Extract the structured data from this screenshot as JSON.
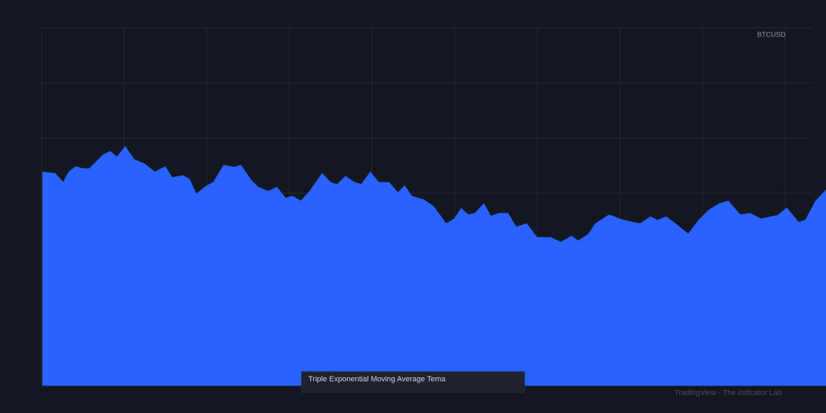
{
  "chart_data": {
    "type": "area",
    "symbol": "BTCUSD",
    "tooltip": "Triple Exponential Moving Average Tema",
    "footer": "TradingView · The Indicator Lab",
    "color": "#2962ff",
    "x": [
      62,
      80,
      92,
      100,
      110,
      120,
      130,
      140,
      150,
      160,
      170,
      182,
      195,
      210,
      225,
      240,
      250,
      265,
      275,
      285,
      300,
      310,
      325,
      340,
      350,
      365,
      375,
      390,
      402,
      415,
      425,
      437,
      450,
      468,
      480,
      490,
      502,
      515,
      525,
      538,
      550,
      565,
      578,
      588,
      598,
      615,
      630,
      648,
      660,
      670,
      680,
      690,
      703,
      713,
      725,
      738,
      750,
      765,
      780,
      790,
      800,
      815,
      830,
      840,
      855,
      865,
      885,
      900,
      915,
      930,
      945,
      955,
      968,
      985,
      1000,
      1015,
      1030,
      1045,
      1058,
      1075,
      1090,
      1105,
      1120,
      1130,
      1143,
      1160,
      1170,
      1185,
      1200
    ],
    "values": [
      310,
      308,
      295,
      310,
      318,
      315,
      315,
      325,
      335,
      340,
      332,
      347,
      328,
      322,
      310,
      318,
      302,
      305,
      300,
      278,
      290,
      295,
      320,
      317,
      320,
      298,
      288,
      282,
      288,
      272,
      275,
      268,
      282,
      308,
      295,
      292,
      304,
      295,
      292,
      310,
      295,
      295,
      280,
      290,
      275,
      270,
      260,
      235,
      242,
      257,
      248,
      250,
      264,
      246,
      250,
      250,
      230,
      235,
      215,
      215,
      215,
      208,
      217,
      210,
      220,
      235,
      248,
      242,
      238,
      235,
      245,
      240,
      245,
      232,
      220,
      240,
      255,
      264,
      268,
      248,
      250,
      242,
      245,
      247,
      258,
      237,
      240,
      268,
      284
    ],
    "xlim": [
      60,
      1200
    ],
    "ylim": [
      0,
      520
    ]
  }
}
